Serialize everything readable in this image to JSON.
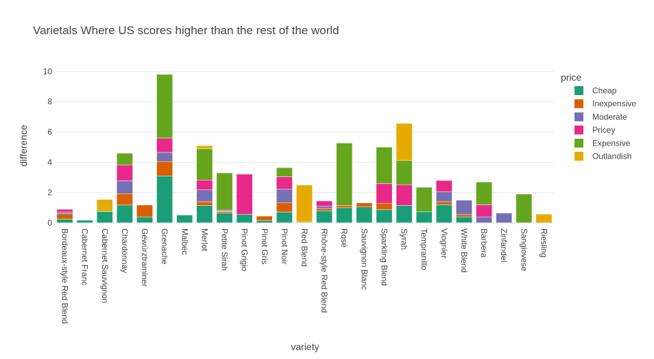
{
  "colors": {
    "Cheap": "#1b9e77",
    "Inexpensive": "#d95f02",
    "Moderate": "#7570b3",
    "Pricey": "#e7298a",
    "Expensive": "#66a61e",
    "Outlandish": "#e6ab02"
  },
  "chart_data": {
    "type": "bar",
    "barmode": "stack",
    "title": "Varietals Where US scores higher than the rest of the world",
    "xlabel": "variety",
    "ylabel": "difference",
    "ylim": [
      0,
      10.2
    ],
    "yticks": [
      0,
      2,
      4,
      6,
      8,
      10
    ],
    "grid": true,
    "legend_title": "price",
    "legend_position": "right",
    "categories": [
      "Bordeaux-style Red Blend",
      "Cabernet Franc",
      "Cabernet Sauvignon",
      "Chardonnay",
      "Gewürztraminer",
      "Grenache",
      "Malbec",
      "Merlot",
      "Petite Sirah",
      "Pinot Grigio",
      "Pinot Gris",
      "Pinot Noir",
      "Red Blend",
      "Rhône-style Red Blend",
      "Rosé",
      "Sauvignon Blanc",
      "Sparkling Blend",
      "Syrah",
      "Tempranillo",
      "Viognier",
      "White Blend",
      "Barbera",
      "Zinfandel",
      "Sangiovese",
      "Riesling"
    ],
    "series": [
      {
        "name": "Cheap",
        "values": [
          0.25,
          0.18,
          0.75,
          1.18,
          0.4,
          3.1,
          0.52,
          1.15,
          0.65,
          0.57,
          0.15,
          0.72,
          0.05,
          0.8,
          1.0,
          1.05,
          0.88,
          1.15,
          0.73,
          1.2,
          0.4,
          0.0,
          0.0,
          0.0,
          0.0
        ]
      },
      {
        "name": "Inexpensive",
        "values": [
          0.35,
          0.0,
          0.0,
          0.75,
          0.78,
          0.95,
          0.0,
          0.25,
          0.1,
          0.0,
          0.3,
          0.62,
          0.0,
          0.15,
          0.15,
          0.27,
          0.42,
          0.0,
          0.0,
          0.2,
          0.15,
          0.0,
          0.0,
          0.0,
          0.0
        ]
      },
      {
        "name": "Moderate",
        "values": [
          0.12,
          0.0,
          0.0,
          0.85,
          0.0,
          0.6,
          0.0,
          0.78,
          0.05,
          0.0,
          0.0,
          0.88,
          0.0,
          0.15,
          0.0,
          0.0,
          0.0,
          0.0,
          0.0,
          0.65,
          0.95,
          0.4,
          0.65,
          0.0,
          0.0
        ]
      },
      {
        "name": "Pricey",
        "values": [
          0.18,
          0.0,
          0.0,
          1.05,
          0.0,
          0.95,
          0.0,
          0.65,
          0.05,
          2.65,
          0.0,
          0.83,
          0.0,
          0.35,
          0.0,
          0.0,
          1.3,
          1.37,
          0.0,
          0.75,
          0.0,
          0.8,
          0.0,
          0.0,
          0.0
        ]
      },
      {
        "name": "Expensive",
        "values": [
          0.0,
          0.0,
          0.0,
          0.77,
          0.0,
          4.2,
          0.0,
          2.07,
          2.45,
          0.0,
          0.0,
          0.6,
          0.0,
          0.0,
          4.12,
          0.0,
          2.4,
          1.6,
          1.62,
          0.0,
          0.0,
          1.5,
          0.0,
          1.9,
          0.0
        ]
      },
      {
        "name": "Outlandish",
        "values": [
          0.0,
          0.0,
          0.8,
          0.0,
          0.0,
          0.0,
          0.0,
          0.2,
          0.0,
          0.0,
          0.0,
          0.0,
          2.45,
          0.0,
          0.0,
          0.0,
          0.0,
          2.45,
          0.0,
          0.0,
          0.0,
          0.0,
          0.0,
          0.0,
          0.58
        ]
      }
    ]
  }
}
